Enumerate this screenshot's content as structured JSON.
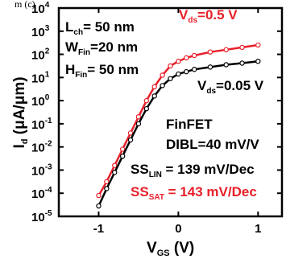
{
  "chart_data": {
    "type": "scatter",
    "title": "",
    "xlabel": {
      "main": "V",
      "sub": "GS",
      "unit": " (V)"
    },
    "ylabel": {
      "main": "I",
      "sub": "d",
      "unit": " (μA/μm)"
    },
    "xlim": [
      -1.5,
      1.3
    ],
    "ylim_log10": [
      -5,
      4
    ],
    "log_y": true,
    "grid": false,
    "x_tick_labels": [
      "-1",
      "0",
      "1"
    ],
    "x_ticks": [
      -1,
      0,
      1
    ],
    "y_tick_labels": [
      {
        "base": "10",
        "exp": "4"
      },
      {
        "base": "10",
        "exp": "3"
      },
      {
        "base": "10",
        "exp": "2"
      },
      {
        "base": "10",
        "exp": "1"
      },
      {
        "base": "10",
        "exp": "0"
      },
      {
        "base": "10",
        "exp": "-1"
      },
      {
        "base": "10",
        "exp": "-2"
      },
      {
        "base": "10",
        "exp": "-3"
      },
      {
        "base": "10",
        "exp": "-4"
      },
      {
        "base": "10",
        "exp": "-5"
      }
    ],
    "y_ticks_log10": [
      4,
      3,
      2,
      1,
      0,
      -1,
      -2,
      -3,
      -4,
      -5
    ],
    "series": [
      {
        "id": "sat",
        "color": "#e8202a",
        "marker": "open-circle",
        "x": [
          -1.0,
          -0.9,
          -0.8,
          -0.7,
          -0.6,
          -0.5,
          -0.4,
          -0.3,
          -0.2,
          -0.1,
          0.0,
          0.1,
          0.2,
          0.4,
          0.6,
          0.8,
          1.0
        ],
        "log10y": [
          -4.1,
          -3.5,
          -2.8,
          -2.1,
          -1.4,
          -0.7,
          0.0,
          0.6,
          1.1,
          1.5,
          1.7,
          1.85,
          1.95,
          2.1,
          2.2,
          2.3,
          2.4
        ]
      },
      {
        "id": "lin",
        "color": "#000000",
        "marker": "open-circle",
        "x": [
          -1.0,
          -0.9,
          -0.8,
          -0.7,
          -0.6,
          -0.5,
          -0.4,
          -0.3,
          -0.2,
          -0.1,
          0.0,
          0.1,
          0.2,
          0.4,
          0.6,
          0.8,
          1.0
        ],
        "log10y": [
          -4.55,
          -3.8,
          -3.1,
          -2.4,
          -1.7,
          -1.0,
          -0.35,
          0.2,
          0.65,
          0.95,
          1.15,
          1.25,
          1.35,
          1.45,
          1.55,
          1.62,
          1.7
        ]
      }
    ],
    "annotations": {
      "lch": {
        "main": "L",
        "sub": "ch",
        "rest": "= 50 nm"
      },
      "wfin": {
        "main": "W",
        "sub": "Fin",
        "rest": "=20 nm"
      },
      "hfin": {
        "main": "H",
        "sub": "Fin",
        "rest": "= 50 nm"
      },
      "vds_sat": {
        "main": "V",
        "sub": "ds",
        "rest": "=0.5 V",
        "color": "#e8202a"
      },
      "vds_lin": {
        "main": "V",
        "sub": "ds",
        "rest": "=0.05 V"
      },
      "finfet": "FinFET",
      "dibl": "DIBL=40 mV/V",
      "ss_lin": {
        "main": "SS",
        "sub": "LIN",
        "rest": " = 139 mV/Dec"
      },
      "ss_sat": {
        "main": "SS",
        "sub": "SAT",
        "rest": " = 143 mV/Dec",
        "color": "#e8202a"
      }
    }
  },
  "cropped_caption": "m (c)"
}
